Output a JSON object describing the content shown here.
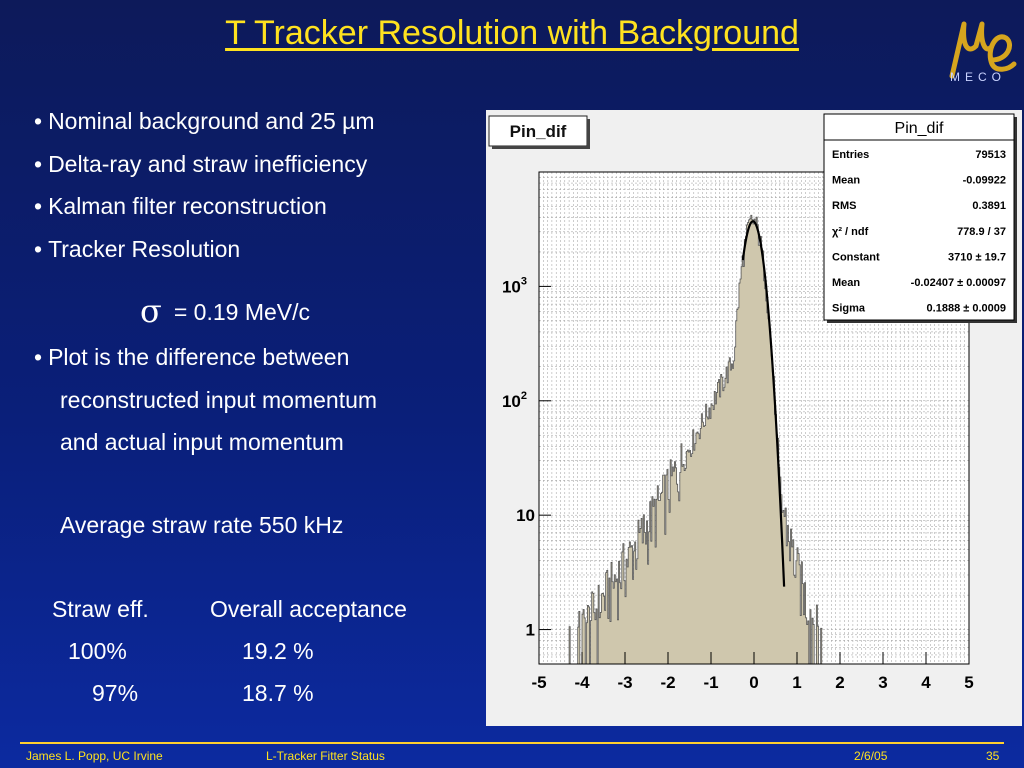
{
  "slide": {
    "title": "T Tracker Resolution with Background",
    "logo_text": "MECO",
    "bullets": [
      "Nominal background and 25 µm",
      "Delta-ray and straw inefficiency",
      "Kalman filter reconstruction",
      "Tracker  Resolution"
    ],
    "sigma_symbol": "σ",
    "sigma_text": "= 0.19 MeV/c",
    "plot_desc": [
      "Plot is the difference between",
      "reconstructed input momentum",
      "and actual input momentum"
    ],
    "rate": "Average straw rate 550 kHz",
    "acceptance": {
      "headers": [
        "Straw eff.",
        "Overall acceptance"
      ],
      "rows": [
        [
          "100%",
          "19.2 %"
        ],
        [
          "97%",
          "18.7 %"
        ]
      ]
    },
    "footer": {
      "author": "James L. Popp, UC Irvine",
      "talk": "L-Tracker Fitter Status",
      "date": "2/6/05",
      "page": "35"
    }
  },
  "chart_data": {
    "type": "histogram",
    "title": "Pin_dif",
    "xlabel": "",
    "ylabel": "",
    "xlim": [
      -5,
      5
    ],
    "ylog": true,
    "ylim": [
      0.5,
      10000
    ],
    "x_ticks": [
      "-5",
      "-4",
      "-3",
      "-2",
      "-1",
      "0",
      "1",
      "2",
      "3",
      "4",
      "5"
    ],
    "y_ticks": [
      {
        "value": 1,
        "base": "1",
        "exp": ""
      },
      {
        "value": 10,
        "base": "10",
        "exp": ""
      },
      {
        "value": 100,
        "base": "10",
        "exp": "2"
      },
      {
        "value": 1000,
        "base": "10",
        "exp": "3"
      }
    ],
    "grid": true,
    "fill_color": "#cfc7ad",
    "fit_color": "#000000",
    "stats_box": {
      "title": "Pin_dif",
      "rows": [
        [
          "Entries",
          "79513"
        ],
        [
          "Mean",
          "-0.09922"
        ],
        [
          "RMS",
          "0.3891"
        ],
        [
          "χ² / ndf",
          "778.9 / 37"
        ],
        [
          "Constant",
          "3710 ± 19.7"
        ],
        [
          "Mean",
          "-0.02407 ± 0.00097"
        ],
        [
          "Sigma",
          "0.1888 ± 0.0009"
        ]
      ]
    },
    "fit": {
      "constant": 3710,
      "mean": -0.02407,
      "sigma": 0.1888,
      "x_range": [
        -0.26,
        0.7
      ]
    }
  }
}
